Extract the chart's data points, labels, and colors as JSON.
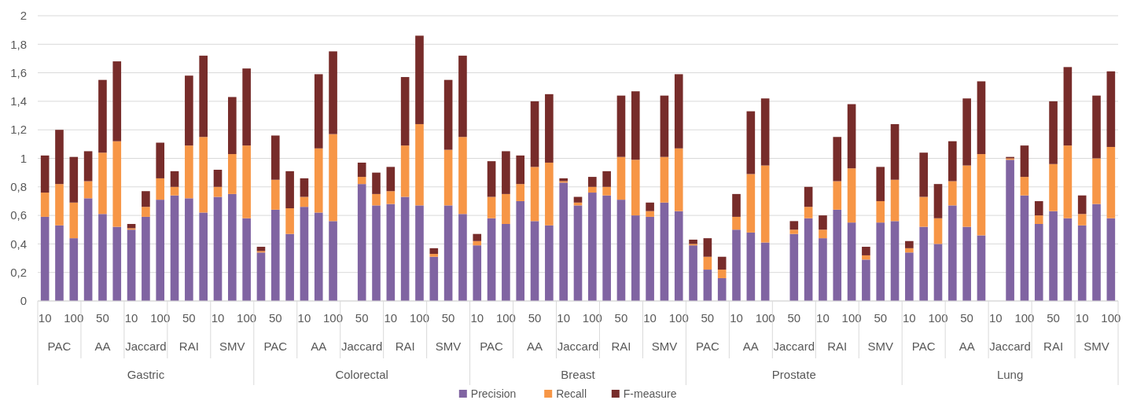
{
  "chart_data": {
    "type": "bar",
    "stacked": true,
    "categories": [
      "10",
      null,
      "100",
      null,
      "50",
      null,
      "10",
      null,
      "100",
      null,
      "50",
      null,
      "10",
      null,
      "100",
      null,
      "50",
      null,
      "10",
      null,
      "100",
      null,
      "50",
      null,
      "10",
      null,
      "100",
      null,
      "50",
      null,
      "10",
      null,
      "100",
      null,
      "50",
      null,
      "10",
      null,
      "100",
      null,
      "50",
      null,
      "10",
      null,
      "100",
      null,
      "50",
      null,
      "10",
      null,
      "100",
      null,
      "50",
      null,
      "10",
      null,
      "100",
      null,
      "50",
      null,
      "10",
      null,
      "100",
      null,
      "50",
      null,
      "10",
      null,
      "100",
      null,
      "50",
      null,
      "10",
      null,
      "100"
    ],
    "annotations": [
      "PAC",
      "AA",
      "Jaccard",
      "RAI",
      "SMV",
      "PAC",
      "AA",
      "Jaccard",
      "RAI",
      "SMV",
      "PAC",
      "AA",
      "Jaccard",
      "RAI",
      "SMV",
      "PAC",
      "AA",
      "Jaccard",
      "RAI",
      "SMV",
      "PAC",
      "AA",
      "Jaccard",
      "RAI",
      "SMV",
      "Gastric",
      "Colorectal",
      "Breast",
      "Prostate",
      "Lung"
    ],
    "series": [
      {
        "name": "Precision",
        "color": "#8064a2",
        "values": [
          0.59,
          0.53,
          0.44,
          0.72,
          0.61,
          0.52,
          0.5,
          0.59,
          0.71,
          0.74,
          0.72,
          0.62,
          0.73,
          0.75,
          0.58,
          0.34,
          0.64,
          0.47,
          0.66,
          0.62,
          0.56,
          null,
          0.82,
          0.67,
          0.68,
          0.73,
          0.67,
          0.31,
          0.67,
          0.61,
          0.39,
          0.58,
          0.54,
          0.7,
          0.56,
          0.53,
          0.83,
          0.67,
          0.76,
          0.74,
          0.71,
          0.6,
          0.59,
          0.69,
          0.63,
          0.39,
          0.22,
          0.16,
          0.5,
          0.48,
          0.41,
          null,
          0.47,
          0.58,
          0.44,
          0.64,
          0.55,
          0.29,
          0.55,
          0.56,
          0.34,
          0.52,
          0.4,
          0.67,
          0.52,
          0.46,
          null,
          0.99,
          0.74,
          0.54,
          0.63,
          0.58,
          0.53,
          0.68,
          0.58
        ]
      },
      {
        "name": "Recall",
        "color": "#f79646",
        "values": [
          0.17,
          0.29,
          0.25,
          0.12,
          0.43,
          0.6,
          0.01,
          0.07,
          0.15,
          0.06,
          0.37,
          0.53,
          0.07,
          0.28,
          0.51,
          0.01,
          0.21,
          0.18,
          0.07,
          0.45,
          0.61,
          null,
          0.05,
          0.08,
          0.09,
          0.36,
          0.57,
          0.02,
          0.39,
          0.54,
          0.03,
          0.15,
          0.21,
          0.12,
          0.38,
          0.44,
          0.01,
          0.02,
          0.04,
          0.06,
          0.3,
          0.39,
          0.04,
          0.32,
          0.44,
          0.01,
          0.09,
          0.06,
          0.09,
          0.41,
          0.54,
          null,
          0.03,
          0.08,
          0.06,
          0.2,
          0.38,
          0.03,
          0.15,
          0.29,
          0.03,
          0.21,
          0.18,
          0.17,
          0.43,
          0.57,
          null,
          0.01,
          0.13,
          0.06,
          0.33,
          0.51,
          0.08,
          0.32,
          0.5
        ]
      },
      {
        "name": "F-measure",
        "color": "#772c2a",
        "values": [
          0.26,
          0.38,
          0.32,
          0.21,
          0.51,
          0.56,
          0.03,
          0.11,
          0.25,
          0.11,
          0.49,
          0.57,
          0.12,
          0.4,
          0.54,
          0.03,
          0.31,
          0.26,
          0.13,
          0.52,
          0.58,
          null,
          0.1,
          0.15,
          0.17,
          0.48,
          0.62,
          0.04,
          0.49,
          0.57,
          0.05,
          0.25,
          0.3,
          0.2,
          0.46,
          0.48,
          0.02,
          0.04,
          0.07,
          0.11,
          0.43,
          0.48,
          0.06,
          0.43,
          0.52,
          0.03,
          0.13,
          0.09,
          0.16,
          0.44,
          0.47,
          null,
          0.06,
          0.14,
          0.1,
          0.31,
          0.45,
          0.06,
          0.24,
          0.39,
          0.05,
          0.31,
          0.24,
          0.28,
          0.47,
          0.51,
          null,
          0.01,
          0.22,
          0.1,
          0.44,
          0.55,
          0.13,
          0.44,
          0.53
        ]
      }
    ],
    "ylim": [
      0,
      2
    ],
    "yticks": [
      0,
      {
        "value": 0.2,
        "label": "0,2"
      },
      {
        "value": 0.4,
        "label": "0,4"
      },
      {
        "value": 0.6,
        "label": "0,6"
      },
      {
        "value": 0.8,
        "label": "0,8"
      },
      1,
      {
        "value": 1.2,
        "label": "1,2"
      },
      {
        "value": 1.4,
        "label": "1,4"
      },
      {
        "value": 1.6,
        "label": "1,6"
      },
      {
        "value": 1.8,
        "label": "1,8"
      },
      2
    ],
    "grid": "y",
    "legend": "bottom"
  }
}
